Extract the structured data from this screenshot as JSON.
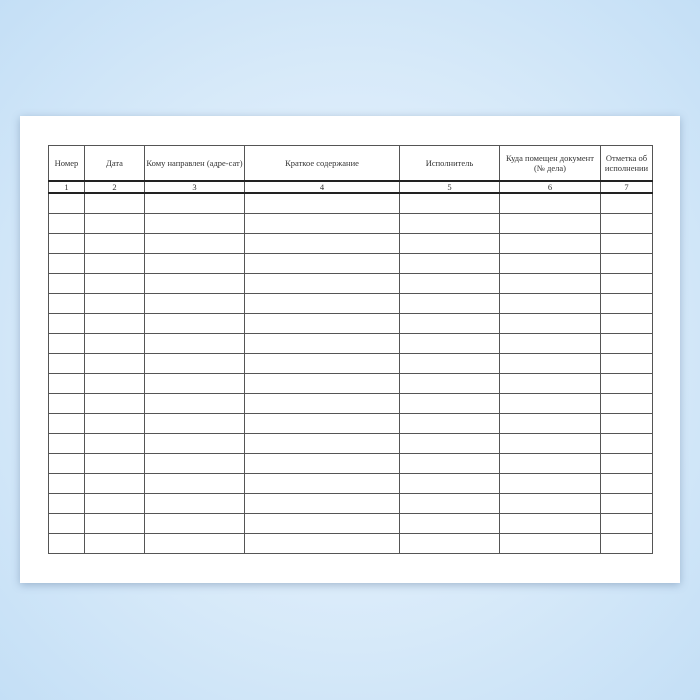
{
  "table": {
    "headers": [
      "Номер",
      "Дата",
      "Кому направлен (адре-сат)",
      "Краткое содержание",
      "Исполнитель",
      "Куда помещен документ (№ дела)",
      "Отметка об исполнении"
    ],
    "numbers": [
      "1",
      "2",
      "3",
      "4",
      "5",
      "6",
      "7"
    ],
    "empty_rows": 18
  }
}
